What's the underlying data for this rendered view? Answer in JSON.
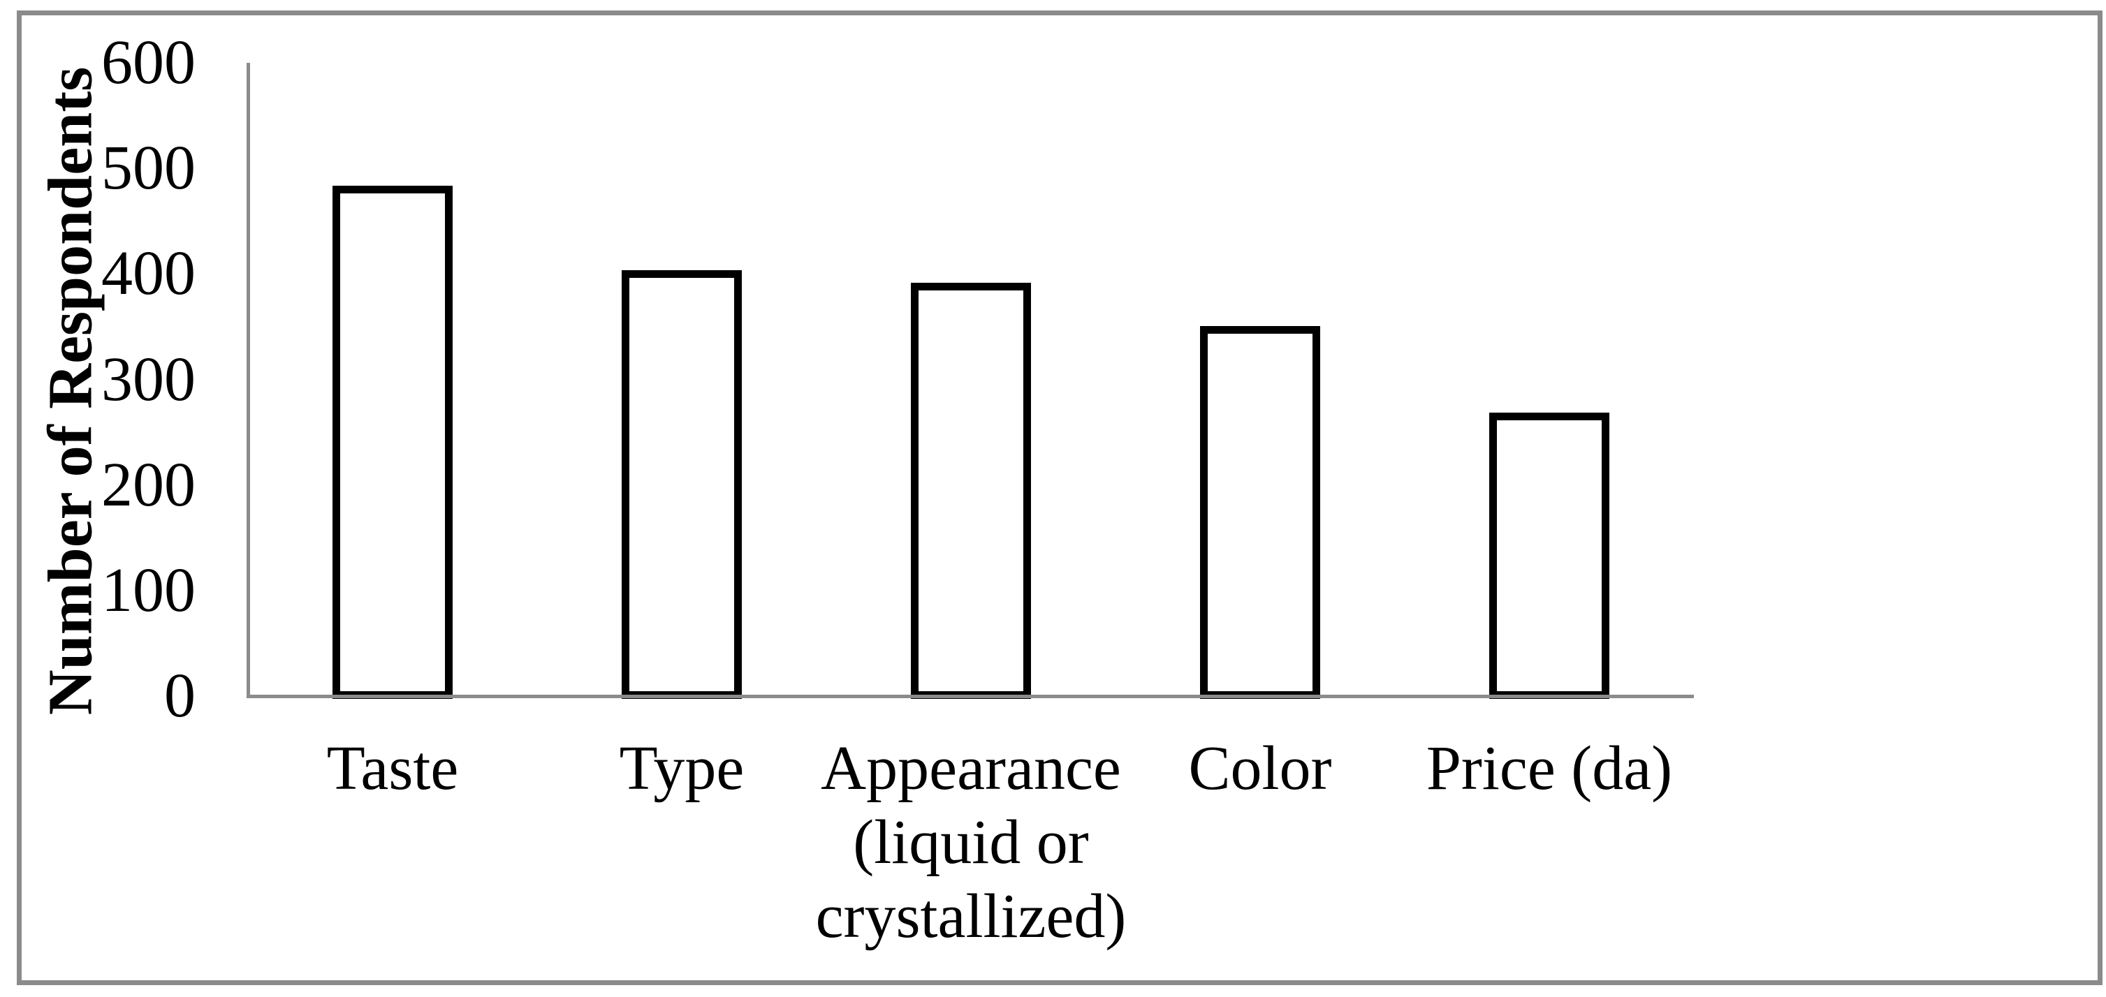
{
  "chart_data": {
    "type": "bar",
    "ylabel": "Number of Respondents",
    "categories": [
      "Taste",
      "Type",
      "Appearance\n(liquid or\ncrystallized)",
      "Color",
      "Price (da)"
    ],
    "values": [
      480,
      400,
      388,
      347,
      265
    ],
    "yticks": [
      0,
      100,
      200,
      300,
      400,
      500,
      600
    ],
    "ylim": [
      0,
      600
    ],
    "grid": "off",
    "legend": "none",
    "bar_fill": "#ffffff",
    "bar_border_color": "#000000",
    "axis_color": "#8b8b8b",
    "frame_color": "#8b8b8b",
    "text_color": "#000000",
    "background": "#ffffff"
  }
}
